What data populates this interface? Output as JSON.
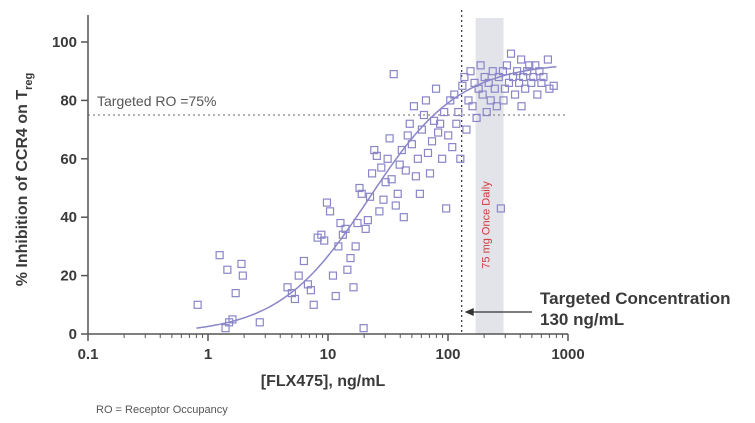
{
  "chart_data": {
    "type": "scatter",
    "xlabel": "[FLX475], ng/mL",
    "ylabel": "% Inhibition of CCR4 on T",
    "ylabel_subscript": "reg",
    "xscale": "log",
    "xlim": [
      0.1,
      1000
    ],
    "ylim": [
      0,
      100
    ],
    "x_ticks": [
      "0.1",
      "1",
      "10",
      "100",
      "1000"
    ],
    "y_ticks": [
      "0",
      "20",
      "40",
      "60",
      "80",
      "100"
    ],
    "grid": false,
    "marker": "open-square",
    "colors": {
      "points": "#8a86c8",
      "curve": "#8a86c8",
      "band": "#e3e3ea",
      "band_text": "#d23a3a",
      "axis": "#555555"
    },
    "points": [
      [
        0.82,
        10
      ],
      [
        1.25,
        27
      ],
      [
        1.4,
        2
      ],
      [
        1.5,
        4
      ],
      [
        1.6,
        5
      ],
      [
        1.45,
        22
      ],
      [
        1.7,
        14
      ],
      [
        1.9,
        24
      ],
      [
        2.7,
        4
      ],
      [
        1.95,
        20
      ],
      [
        4.6,
        16
      ],
      [
        5.0,
        14
      ],
      [
        5.3,
        12
      ],
      [
        5.7,
        20
      ],
      [
        6.3,
        25
      ],
      [
        6.8,
        17
      ],
      [
        7.2,
        15
      ],
      [
        7.6,
        10
      ],
      [
        8.2,
        33
      ],
      [
        8.8,
        34
      ],
      [
        9.3,
        32
      ],
      [
        9.8,
        45
      ],
      [
        10.4,
        42
      ],
      [
        11.0,
        20
      ],
      [
        11.6,
        13
      ],
      [
        12.2,
        30
      ],
      [
        12.7,
        38
      ],
      [
        13.3,
        34
      ],
      [
        14.0,
        36
      ],
      [
        14.5,
        22
      ],
      [
        15.4,
        26
      ],
      [
        16.3,
        16
      ],
      [
        17.0,
        30
      ],
      [
        17.6,
        38
      ],
      [
        18.3,
        50
      ],
      [
        19.1,
        48
      ],
      [
        19.8,
        2
      ],
      [
        20.6,
        36
      ],
      [
        21.5,
        39
      ],
      [
        22.4,
        47
      ],
      [
        23.3,
        55
      ],
      [
        24.3,
        63
      ],
      [
        25.5,
        61
      ],
      [
        26.8,
        42
      ],
      [
        27.8,
        57
      ],
      [
        29.0,
        46
      ],
      [
        30.2,
        52
      ],
      [
        31.4,
        60
      ],
      [
        32.6,
        67
      ],
      [
        33.9,
        53
      ],
      [
        35.3,
        89
      ],
      [
        36.7,
        44
      ],
      [
        38.1,
        48
      ],
      [
        39.6,
        58
      ],
      [
        41.2,
        63
      ],
      [
        42.8,
        40
      ],
      [
        44.5,
        56
      ],
      [
        46.2,
        68
      ],
      [
        48.0,
        72
      ],
      [
        50.0,
        65
      ],
      [
        52.0,
        78
      ],
      [
        54.0,
        54
      ],
      [
        56.1,
        60
      ],
      [
        58.3,
        48
      ],
      [
        60.6,
        70
      ],
      [
        63.0,
        75
      ],
      [
        65.5,
        80
      ],
      [
        68.1,
        62
      ],
      [
        70.8,
        55
      ],
      [
        73.6,
        66
      ],
      [
        76.5,
        73
      ],
      [
        79.5,
        84
      ],
      [
        82.7,
        69
      ],
      [
        86.0,
        72
      ],
      [
        89.4,
        60
      ],
      [
        92.9,
        76
      ],
      [
        96.5,
        43
      ],
      [
        100.4,
        68
      ],
      [
        104.4,
        80
      ],
      [
        108.5,
        64
      ],
      [
        112.8,
        82
      ],
      [
        117.3,
        72
      ],
      [
        121.9,
        76
      ],
      [
        126.7,
        60
      ],
      [
        131.7,
        85
      ],
      [
        137.0,
        88
      ],
      [
        142.4,
        70
      ],
      [
        148.1,
        80
      ],
      [
        154.0,
        90
      ],
      [
        160.1,
        78
      ],
      [
        166.4,
        86
      ],
      [
        173.0,
        74
      ],
      [
        179.9,
        84
      ],
      [
        187.0,
        92
      ],
      [
        194.4,
        82
      ],
      [
        202.1,
        88
      ],
      [
        210.1,
        76
      ],
      [
        218.4,
        86
      ],
      [
        227.0,
        80
      ],
      [
        236.0,
        90
      ],
      [
        245.4,
        84
      ],
      [
        255.1,
        78
      ],
      [
        265.2,
        88
      ],
      [
        275.7,
        43
      ],
      [
        286.7,
        90
      ],
      [
        298.0,
        84
      ],
      [
        309.8,
        92
      ],
      [
        322.1,
        86
      ],
      [
        334.9,
        96
      ],
      [
        348.2,
        88
      ],
      [
        362.0,
        82
      ],
      [
        376.3,
        90
      ],
      [
        391.3,
        86
      ],
      [
        406.8,
        94
      ],
      [
        422.9,
        88
      ],
      [
        439.7,
        84
      ],
      [
        457.1,
        90
      ],
      [
        475.2,
        92
      ],
      [
        494.1,
        86
      ],
      [
        513.7,
        88
      ],
      [
        534.1,
        92
      ],
      [
        555.3,
        82
      ],
      [
        577.3,
        90
      ],
      [
        600.2,
        86
      ],
      [
        624.0,
        88
      ],
      [
        700,
        84
      ],
      [
        760,
        85
      ],
      [
        680,
        94
      ],
      [
        410,
        78
      ],
      [
        290,
        80
      ]
    ],
    "fit_curve_note_free": true,
    "target_ro_line": {
      "y": 75,
      "label": "Targeted RO =75%"
    },
    "target_concentration_line": {
      "x": 130,
      "label_line1": "Targeted Concentration",
      "label_line2": "130 ng/mL"
    },
    "dose_band": {
      "x_from": 170,
      "x_to": 290,
      "label": "75 mg Once Daily"
    }
  },
  "footnote": "RO = Receptor Occupancy"
}
